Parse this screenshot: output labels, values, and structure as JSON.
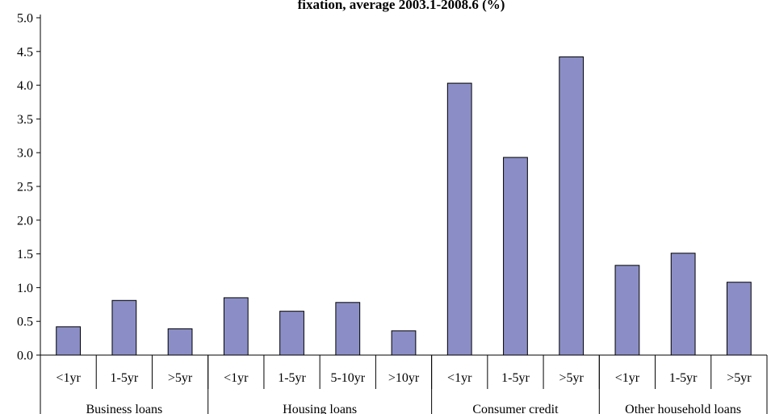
{
  "chart_data": {
    "type": "bar",
    "title": "fixation, average 2003.1-2008.6 (%)",
    "xlabel": "",
    "ylabel": "",
    "ylim": [
      0,
      5.0
    ],
    "yticks": [
      "0.0",
      "0.5",
      "1.0",
      "1.5",
      "2.0",
      "2.5",
      "3.0",
      "3.5",
      "4.0",
      "4.5",
      "5.0"
    ],
    "grid": false,
    "legend": "none",
    "colors": {
      "bar_fill": "#8B8EC6",
      "bar_stroke": "#000000",
      "axis": "#000000"
    },
    "groups": [
      {
        "name": "Business loans",
        "categories": [
          "<1yr",
          "1-5yr",
          ">5yr"
        ],
        "values": [
          0.42,
          0.81,
          0.39
        ]
      },
      {
        "name": "Housing loans",
        "categories": [
          "<1yr",
          "1-5yr",
          "5-10yr",
          ">10yr"
        ],
        "values": [
          0.85,
          0.65,
          0.78,
          0.36
        ]
      },
      {
        "name": "Consumer credit",
        "categories": [
          "<1yr",
          "1-5yr",
          ">5yr"
        ],
        "values": [
          4.03,
          2.93,
          4.42
        ]
      },
      {
        "name": "Other household loans",
        "categories": [
          "<1yr",
          "1-5yr",
          ">5yr"
        ],
        "values": [
          1.33,
          1.51,
          1.08
        ]
      }
    ]
  }
}
